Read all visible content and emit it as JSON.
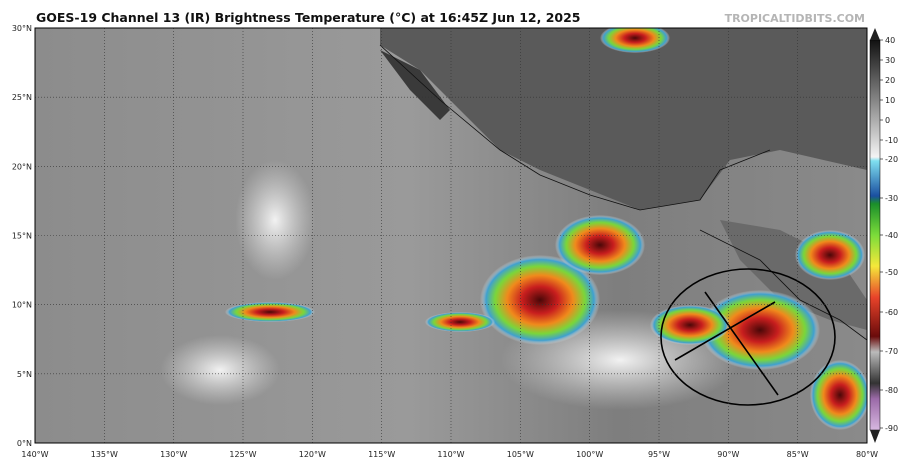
{
  "header": {
    "title": "GOES-19 Channel 13 (IR) Brightness Temperature (°C) at 16:45Z Jun 12, 2025",
    "source": "TROPICALTIDBITS.COM"
  },
  "map": {
    "longitude_labels": [
      "140°W",
      "135°W",
      "130°W",
      "125°W",
      "120°W",
      "115°W",
      "110°W",
      "105°W",
      "100°W",
      "95°W",
      "90°W",
      "85°W",
      "80°W"
    ],
    "latitude_labels": [
      "0°N",
      "5°N",
      "10°N",
      "15°N",
      "20°N",
      "25°N",
      "30°N"
    ]
  },
  "colorbar": {
    "ticks": [
      40,
      30,
      20,
      10,
      0,
      -10,
      -20,
      -30,
      -40,
      -50,
      -60,
      -70,
      -80,
      -90
    ]
  }
}
